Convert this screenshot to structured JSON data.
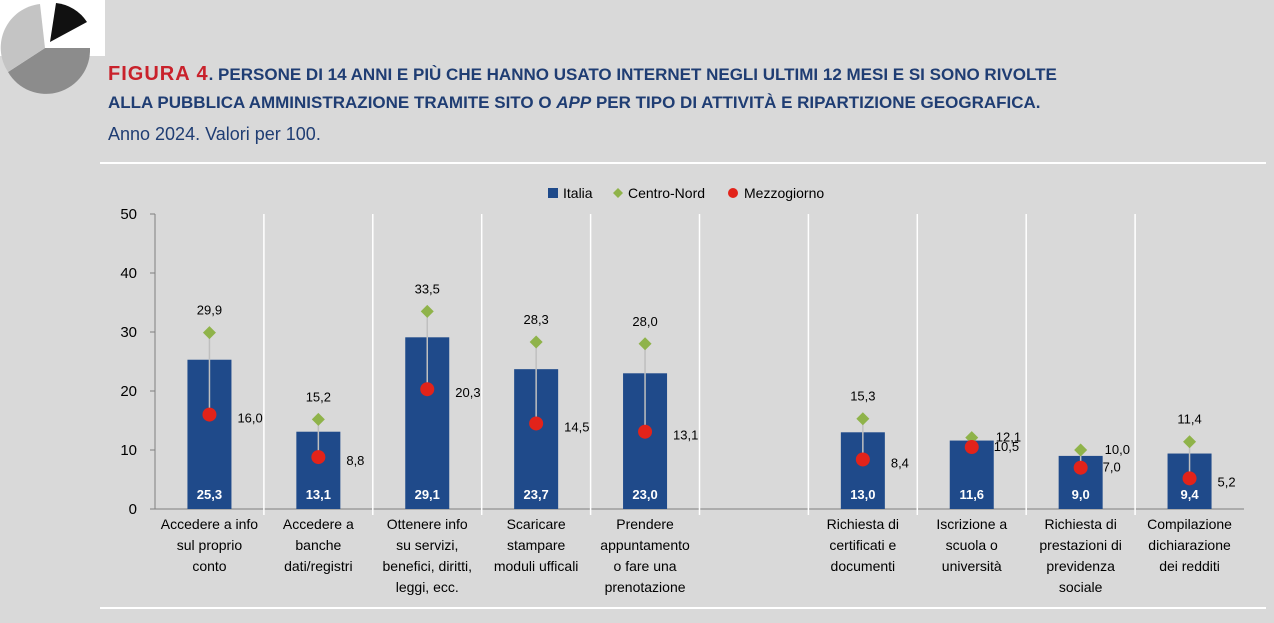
{
  "header": {
    "figure_label": "FIGURA 4",
    "title_line1": ". PERSONE DI 14 ANNI E PIÙ CHE HANNO USATO INTERNET NEGLI ULTIMI 12 MESI E SI SONO RIVOLTE",
    "title_line2_a": "ALLA PUBBLICA AMMINISTRAZIONE TRAMITE SITO O ",
    "title_line2_app": "APP",
    "title_line2_b": " PER TIPO DI ATTIVITÀ E RIPARTIZIONE GEOGRAFICA.",
    "subtitle": "Anno 2024. Valori per 100."
  },
  "colors": {
    "background": "#d9d9d9",
    "bar": "#1f4a8a",
    "centro_nord": "#8fb34a",
    "mezzogiorno": "#e2231a",
    "title": "#1f3d73",
    "figure_word": "#c9212b"
  },
  "chart_data": {
    "type": "bar",
    "ylim": [
      0,
      50
    ],
    "yticks": [
      0,
      10,
      20,
      30,
      40,
      50
    ],
    "legend_position": "top-center",
    "grid": false,
    "categories": [
      [
        "Accedere a info",
        "sul proprio",
        "conto"
      ],
      [
        "Accedere a",
        "banche",
        "dati/registri"
      ],
      [
        "Ottenere info",
        "su servizi,",
        "benefici, diritti,",
        "leggi,  ecc."
      ],
      [
        "Scaricare",
        "stampare",
        "moduli ufficali"
      ],
      [
        "Prendere",
        "appuntamento",
        "o fare una",
        "prenotazione"
      ],
      [],
      [
        "Richiesta di",
        "certificati e",
        "documenti"
      ],
      [
        "Iscrizione a",
        "scuola o",
        "università"
      ],
      [
        "Richiesta di",
        "prestazioni di",
        "previdenza",
        "sociale"
      ],
      [
        "Compilazione",
        "dichiarazione",
        "dei redditi"
      ]
    ],
    "series": [
      {
        "name": "Italia",
        "kind": "bar",
        "values": [
          25.3,
          13.1,
          29.1,
          23.7,
          23.0,
          null,
          13.0,
          11.6,
          9.0,
          9.4
        ],
        "labels": [
          "25,3",
          "13,1",
          "29,1",
          "23,7",
          "23,0",
          null,
          "13,0",
          "11,6",
          "9,0",
          "9,4"
        ]
      },
      {
        "name": "Centro-Nord",
        "kind": "diamond",
        "values": [
          29.9,
          15.2,
          33.5,
          28.3,
          28.0,
          null,
          15.3,
          12.1,
          10.0,
          11.4
        ],
        "labels": [
          "29,9",
          "15,2",
          "33,5",
          "28,3",
          "28,0",
          null,
          "15,3",
          "12,1",
          "10,0",
          "11,4"
        ]
      },
      {
        "name": "Mezzogiorno",
        "kind": "circle",
        "values": [
          16.0,
          8.8,
          20.3,
          14.5,
          13.1,
          null,
          8.4,
          10.5,
          7.0,
          5.2
        ],
        "labels": [
          "16,0",
          "8,8",
          "20,3",
          "14,5",
          "13,1",
          null,
          "8,4",
          "10,5",
          "7,0",
          "5,2"
        ]
      }
    ]
  }
}
